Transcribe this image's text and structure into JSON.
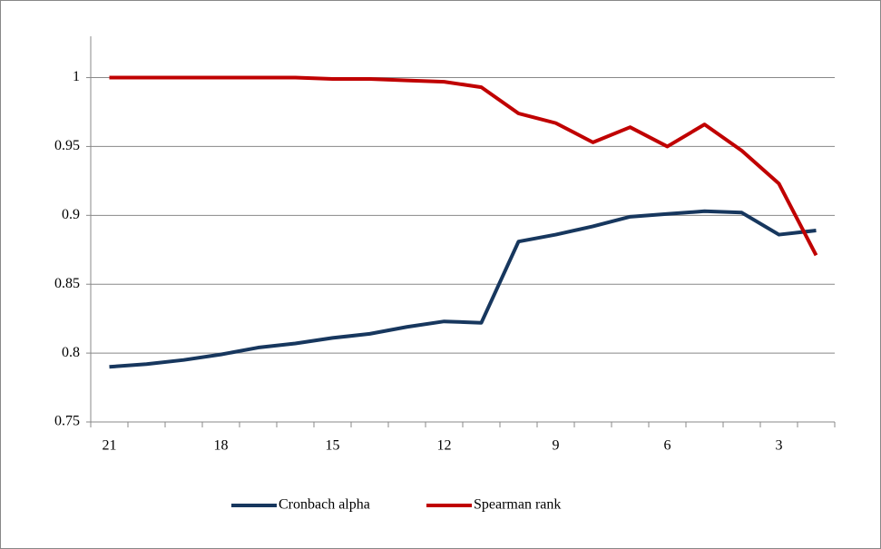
{
  "chart_data": {
    "type": "line",
    "categories": [
      "21",
      null,
      null,
      "18",
      null,
      null,
      "15",
      null,
      null,
      "12",
      null,
      null,
      "9",
      null,
      null,
      "6",
      null,
      null,
      "3",
      null
    ],
    "series": [
      {
        "name": "Cronbach alpha",
        "color": "#17375e",
        "values": [
          0.79,
          0.792,
          0.795,
          0.799,
          0.804,
          0.807,
          0.811,
          0.814,
          0.819,
          0.823,
          0.822,
          0.881,
          0.886,
          0.892,
          0.899,
          0.901,
          0.903,
          0.902,
          0.886,
          0.889
        ]
      },
      {
        "name": "Spearman rank",
        "color": "#c00000",
        "values": [
          1.0,
          1.0,
          1.0,
          1.0,
          1.0,
          1.0,
          0.999,
          0.999,
          0.998,
          0.997,
          0.993,
          0.974,
          0.967,
          0.953,
          0.964,
          0.95,
          0.966,
          0.947,
          0.923,
          0.871
        ]
      }
    ],
    "ylim": [
      0.75,
      1.03
    ],
    "yticks": [
      0.75,
      0.8,
      0.85,
      0.9,
      0.95,
      1
    ],
    "grid": true,
    "legend": "bottom"
  }
}
